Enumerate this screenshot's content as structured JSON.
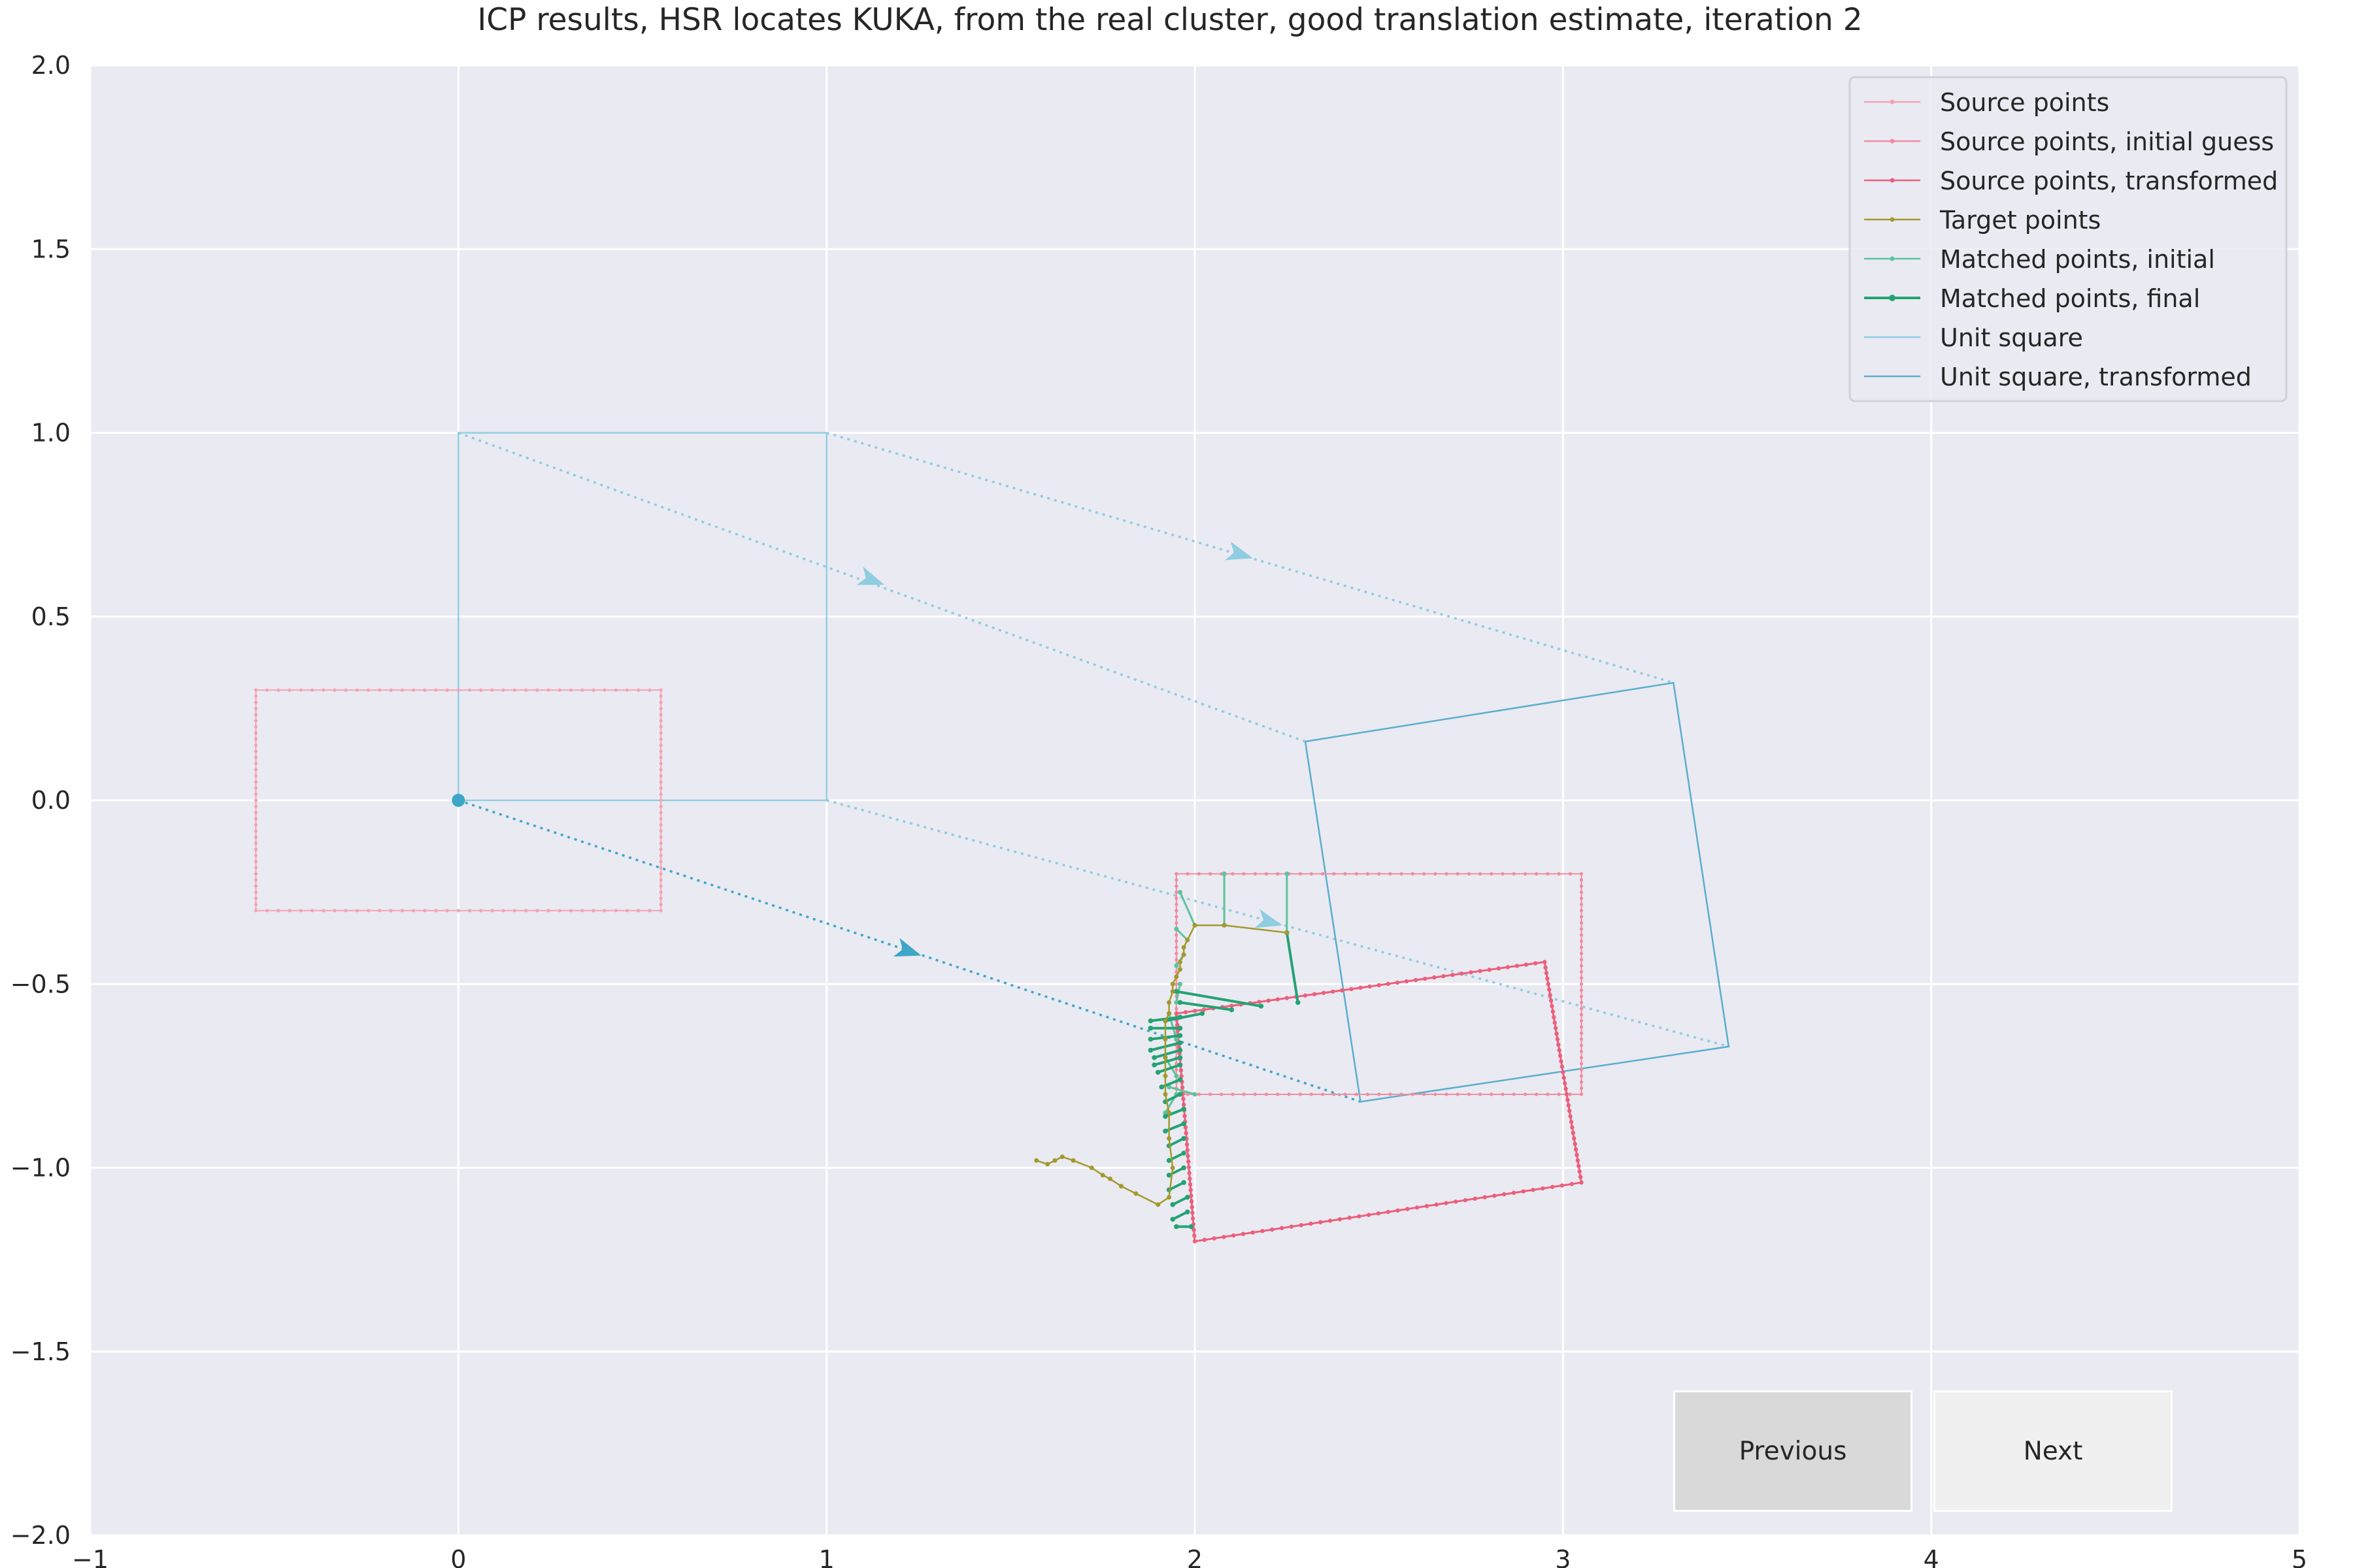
{
  "chart_data": {
    "type": "line",
    "title": "ICP results, HSR locates KUKA, from the real cluster, good translation estimate, iteration 2",
    "xlabel": "",
    "ylabel": "",
    "xlim": [
      -1,
      5
    ],
    "ylim": [
      -2,
      2
    ],
    "xticks": [
      "−1",
      "0",
      "1",
      "2",
      "3",
      "4",
      "5"
    ],
    "yticks": [
      "2.0",
      "1.5",
      "1.0",
      "0.5",
      "0.0",
      "−0.5",
      "−1.0",
      "−1.5",
      "−2.0"
    ],
    "grid": true,
    "legend_position": "upper right",
    "legend": [
      {
        "label": "Source points",
        "color": "#f4a3b4"
      },
      {
        "label": "Source points, initial guess",
        "color": "#f08ca0"
      },
      {
        "label": "Source points, transformed",
        "color": "#ec5f7c"
      },
      {
        "label": "Target points",
        "color": "#a29a2c"
      },
      {
        "label": "Matched points, initial",
        "color": "#5cc39c"
      },
      {
        "label": "Matched points, final",
        "color": "#22a373"
      },
      {
        "label": "Unit square",
        "color": "#8fcde0"
      },
      {
        "label": "Unit square, transformed",
        "color": "#5aaed0"
      }
    ],
    "series": [
      {
        "name": "Source points",
        "color": "#f4a3b4",
        "x": [
          -0.55,
          0.55,
          0.55,
          -0.55,
          -0.55
        ],
        "y": [
          0.3,
          0.3,
          -0.3,
          -0.3,
          0.3
        ]
      },
      {
        "name": "Source points, initial guess",
        "color": "#f08ca0",
        "x": [
          1.95,
          3.05,
          3.05,
          1.95,
          1.95
        ],
        "y": [
          -0.2,
          -0.2,
          -0.8,
          -0.8,
          -0.2
        ]
      },
      {
        "name": "Source points, transformed",
        "color": "#ec5f7c",
        "x": [
          1.95,
          2.95,
          3.05,
          2.0,
          1.95
        ],
        "y": [
          -0.58,
          -0.44,
          -1.04,
          -1.2,
          -0.58
        ]
      },
      {
        "name": "Target points",
        "color": "#a29a2c",
        "x": [
          1.57,
          1.6,
          1.62,
          1.64,
          1.67,
          1.72,
          1.75,
          1.77,
          1.8,
          1.84,
          1.9,
          1.93,
          1.94,
          1.93,
          1.93,
          1.92,
          1.92,
          1.92,
          1.92,
          1.92,
          1.93,
          1.93,
          1.94,
          1.94,
          1.95,
          1.96,
          1.96,
          1.97,
          1.97,
          1.98,
          2.0,
          2.08,
          2.25
        ],
        "y": [
          -0.98,
          -0.99,
          -0.98,
          -0.97,
          -0.98,
          -1.0,
          -1.02,
          -1.03,
          -1.05,
          -1.07,
          -1.1,
          -1.08,
          -1.0,
          -0.92,
          -0.85,
          -0.8,
          -0.75,
          -0.7,
          -0.65,
          -0.6,
          -0.58,
          -0.55,
          -0.52,
          -0.5,
          -0.48,
          -0.46,
          -0.44,
          -0.42,
          -0.4,
          -0.38,
          -0.34,
          -0.34,
          -0.36
        ]
      }
    ],
    "matches_initial": [
      [
        [
          2.08,
          -0.2
        ],
        [
          2.08,
          -0.34
        ]
      ],
      [
        [
          2.25,
          -0.2
        ],
        [
          2.25,
          -0.36
        ]
      ],
      [
        [
          1.96,
          -0.25
        ],
        [
          2.0,
          -0.34
        ]
      ],
      [
        [
          1.95,
          -0.35
        ],
        [
          1.98,
          -0.38
        ]
      ],
      [
        [
          1.95,
          -0.45
        ],
        [
          1.97,
          -0.42
        ]
      ],
      [
        [
          1.95,
          -0.55
        ],
        [
          1.96,
          -0.5
        ]
      ],
      [
        [
          1.95,
          -0.65
        ],
        [
          1.93,
          -0.58
        ]
      ],
      [
        [
          1.95,
          -0.75
        ],
        [
          1.92,
          -0.7
        ]
      ],
      [
        [
          2.0,
          -0.8
        ],
        [
          1.93,
          -0.78
        ]
      ],
      [
        [
          1.95,
          -0.8
        ],
        [
          1.92,
          -0.85
        ]
      ]
    ],
    "matches_final": [
      [
        [
          2.28,
          -0.55
        ],
        [
          2.25,
          -0.36
        ]
      ],
      [
        [
          2.18,
          -0.56
        ],
        [
          1.95,
          -0.52
        ]
      ],
      [
        [
          2.1,
          -0.57
        ],
        [
          1.96,
          -0.55
        ]
      ],
      [
        [
          2.02,
          -0.58
        ],
        [
          1.92,
          -0.6
        ]
      ],
      [
        [
          1.96,
          -0.59
        ],
        [
          1.88,
          -0.6
        ]
      ],
      [
        [
          1.96,
          -0.62
        ],
        [
          1.88,
          -0.62
        ]
      ],
      [
        [
          1.96,
          -0.64
        ],
        [
          1.88,
          -0.65
        ]
      ],
      [
        [
          1.96,
          -0.66
        ],
        [
          1.88,
          -0.68
        ]
      ],
      [
        [
          1.96,
          -0.68
        ],
        [
          1.89,
          -0.7
        ]
      ],
      [
        [
          1.96,
          -0.7
        ],
        [
          1.89,
          -0.72
        ]
      ],
      [
        [
          1.96,
          -0.72
        ],
        [
          1.9,
          -0.74
        ]
      ],
      [
        [
          1.96,
          -0.76
        ],
        [
          1.91,
          -0.78
        ]
      ],
      [
        [
          1.96,
          -0.8
        ],
        [
          1.92,
          -0.82
        ]
      ],
      [
        [
          1.97,
          -0.84
        ],
        [
          1.92,
          -0.86
        ]
      ],
      [
        [
          1.97,
          -0.88
        ],
        [
          1.92,
          -0.9
        ]
      ],
      [
        [
          1.97,
          -0.92
        ],
        [
          1.93,
          -0.94
        ]
      ],
      [
        [
          1.97,
          -0.96
        ],
        [
          1.93,
          -0.98
        ]
      ],
      [
        [
          1.97,
          -1.0
        ],
        [
          1.93,
          -1.02
        ]
      ],
      [
        [
          1.97,
          -1.04
        ],
        [
          1.93,
          -1.06
        ]
      ],
      [
        [
          1.98,
          -1.08
        ],
        [
          1.94,
          -1.1
        ]
      ],
      [
        [
          1.98,
          -1.12
        ],
        [
          1.94,
          -1.14
        ]
      ],
      [
        [
          1.99,
          -1.16
        ],
        [
          1.95,
          -1.16
        ]
      ]
    ],
    "unit_square": {
      "color": "#8fcde0",
      "x": [
        0,
        1,
        1,
        0,
        0
      ],
      "y": [
        0,
        0,
        1,
        1,
        0
      ]
    },
    "unit_square_transformed": {
      "color": "#5aaed0",
      "x": [
        2.3,
        3.3,
        3.45,
        2.45,
        2.3
      ],
      "y": [
        0.16,
        0.32,
        -0.67,
        -0.82,
        0.16
      ]
    },
    "origin_point": {
      "x": 0,
      "y": 0,
      "color": "#3ea6c7"
    },
    "displacement_lines": [
      {
        "from": [
          0,
          0
        ],
        "to": [
          2.45,
          -0.82
        ],
        "color": "#3ea6c7",
        "arrow_at": [
          1.22,
          -0.41
        ]
      },
      {
        "from": [
          1,
          0
        ],
        "to": [
          3.45,
          -0.67
        ],
        "color": "#8fcde0",
        "arrow_at": [
          2.2,
          -0.33
        ]
      },
      {
        "from": [
          0,
          1
        ],
        "to": [
          2.3,
          0.16
        ],
        "color": "#8fcde0",
        "arrow_at": [
          1.12,
          0.6
        ]
      },
      {
        "from": [
          1,
          1
        ],
        "to": [
          3.3,
          0.32
        ],
        "color": "#8fcde0",
        "arrow_at": [
          2.12,
          0.67
        ]
      }
    ]
  },
  "buttons": {
    "previous": "Previous",
    "next": "Next"
  }
}
